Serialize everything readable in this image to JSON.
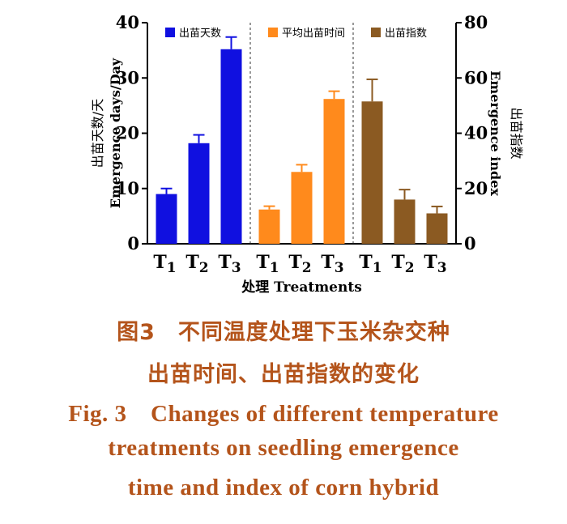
{
  "chart_data": {
    "type": "bar",
    "xlabel": "处理  Treatments",
    "ylabel_left": [
      "出苗天数/天",
      "Emergence days/Day"
    ],
    "ylabel_right": [
      "出苗指数",
      "Emergence index"
    ],
    "ylim_left": [
      0,
      40
    ],
    "ylim_right": [
      0,
      80
    ],
    "yticks_left": [
      "0",
      "10",
      "20",
      "30",
      "40"
    ],
    "yticks_right": [
      "0",
      "20",
      "40",
      "60",
      "80"
    ],
    "categories": [
      "T1",
      "T2",
      "T3"
    ],
    "groups": [
      {
        "name": "出苗天数",
        "axis": "left",
        "color": "#1010e0",
        "values": [
          9.0,
          18.2,
          35.2
        ],
        "errors": [
          1.0,
          1.5,
          2.2
        ]
      },
      {
        "name": "平均出苗时间",
        "axis": "left",
        "color": "#ff8a1c",
        "values": [
          6.2,
          13.0,
          26.2
        ],
        "errors": [
          0.6,
          1.3,
          1.4
        ]
      },
      {
        "name": "出苗指数",
        "axis": "right",
        "color": "#8b5a22",
        "values": [
          51.5,
          16.0,
          11.0
        ],
        "errors": [
          8.0,
          3.6,
          2.5
        ]
      }
    ],
    "grid": false,
    "legend_position": "top"
  },
  "caption": {
    "cn_line1": "图3　不同温度处理下玉米杂交种",
    "cn_line2": "出苗时间、出苗指数的变化",
    "en_line1": "Fig. 3　Changes of different temperature",
    "en_line2": "treatments on seedling emergence",
    "en_line3": "time and index of corn hybrid"
  }
}
